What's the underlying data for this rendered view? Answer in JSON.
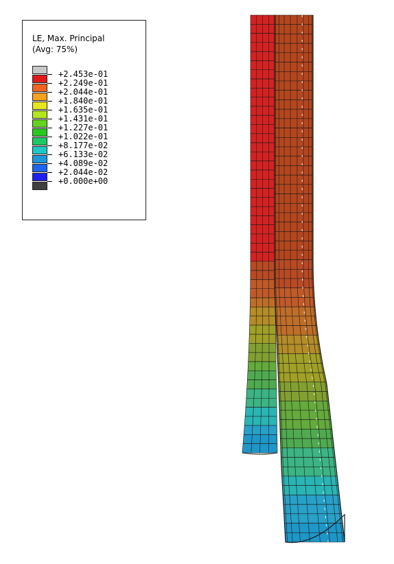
{
  "legend": {
    "title": "LE, Max. Principal",
    "subtitle": "(Avg: 75%)",
    "values": [
      "+2.453e-01",
      "+2.249e-01",
      "+2.044e-01",
      "+1.840e-01",
      "+1.635e-01",
      "+1.431e-01",
      "+1.227e-01",
      "+1.022e-01",
      "+8.177e-02",
      "+6.133e-02",
      "+4.089e-02",
      "+2.044e-02",
      "+0.000e+00"
    ],
    "colors": [
      "#c8c8c8",
      "#e01a1a",
      "#f0641e",
      "#f5a01e",
      "#e6e61e",
      "#b4e61e",
      "#64d21e",
      "#28c81e",
      "#1ec864",
      "#1ec8c8",
      "#1e96dc",
      "#1e64f0",
      "#1e1ef0",
      "#404040"
    ]
  },
  "model": {
    "band_colors": [
      "#1e96c8",
      "#28a0c8",
      "#2ab4b4",
      "#3cb484",
      "#50aa50",
      "#64aa3c",
      "#82a032",
      "#a0a028",
      "#b48c28",
      "#be6e28",
      "#c05a28",
      "#b84a24"
    ]
  }
}
